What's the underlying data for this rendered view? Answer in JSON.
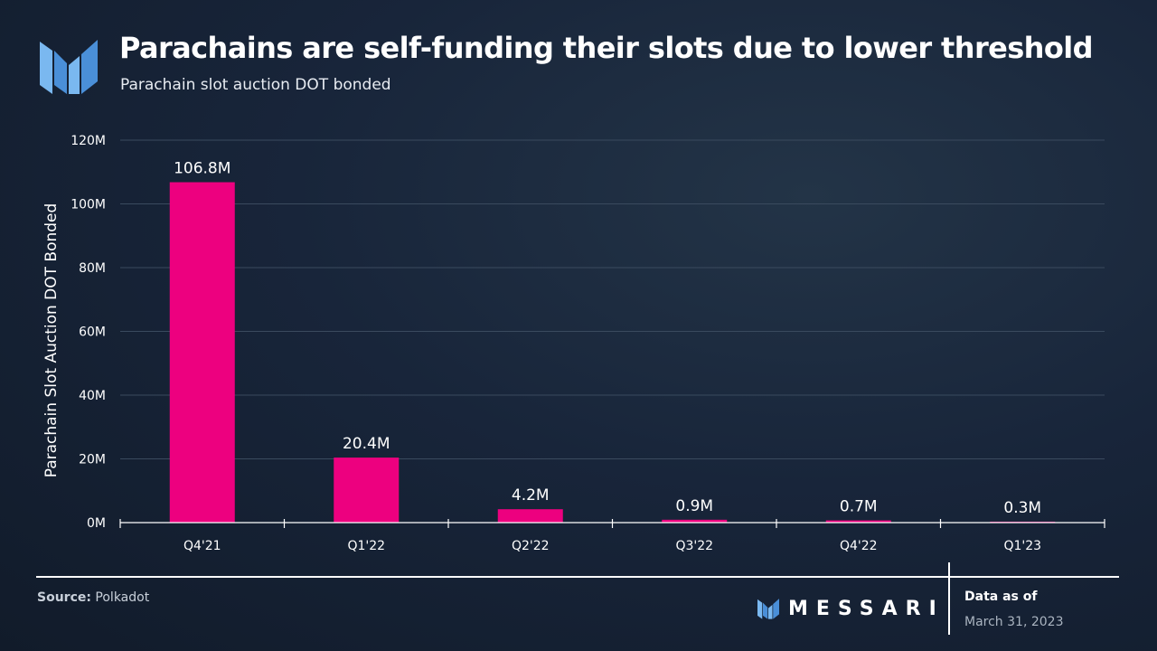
{
  "header": {
    "title": "Parachains are self-funding their slots due to lower threshold",
    "subtitle": "Parachain slot auction DOT bonded"
  },
  "chart_data": {
    "type": "bar",
    "title": "Parachains are self-funding their slots due to lower threshold",
    "subtitle": "Parachain slot auction DOT bonded",
    "categories": [
      "Q4'21",
      "Q1'22",
      "Q2'22",
      "Q3'22",
      "Q4'22",
      "Q1'23"
    ],
    "values": [
      106.8,
      20.4,
      4.2,
      0.9,
      0.7,
      0.3
    ],
    "value_labels": [
      "106.8M",
      "20.4M",
      "4.2M",
      "0.9M",
      "0.7M",
      "0.3M"
    ],
    "value_unit": "M",
    "xlabel": "",
    "ylabel": "Parachain Slot Auction DOT Bonded",
    "ylim": [
      0,
      120
    ],
    "yticks": [
      0,
      20,
      40,
      60,
      80,
      100,
      120
    ],
    "ytick_labels": [
      "0M",
      "20M",
      "40M",
      "60M",
      "80M",
      "100M",
      "120M"
    ],
    "grid": true,
    "bar_color": "#ed007f"
  },
  "footer": {
    "source_label": "Source:",
    "source_value": "Polkadot",
    "brand": "MESSARI",
    "asof_label": "Data as of",
    "asof_date": "March 31, 2023"
  },
  "colors": {
    "accent": "#ed007f",
    "logo_blue": "#5aa0e6",
    "grid": "#3a4a5e",
    "axis": "#ffffff"
  }
}
